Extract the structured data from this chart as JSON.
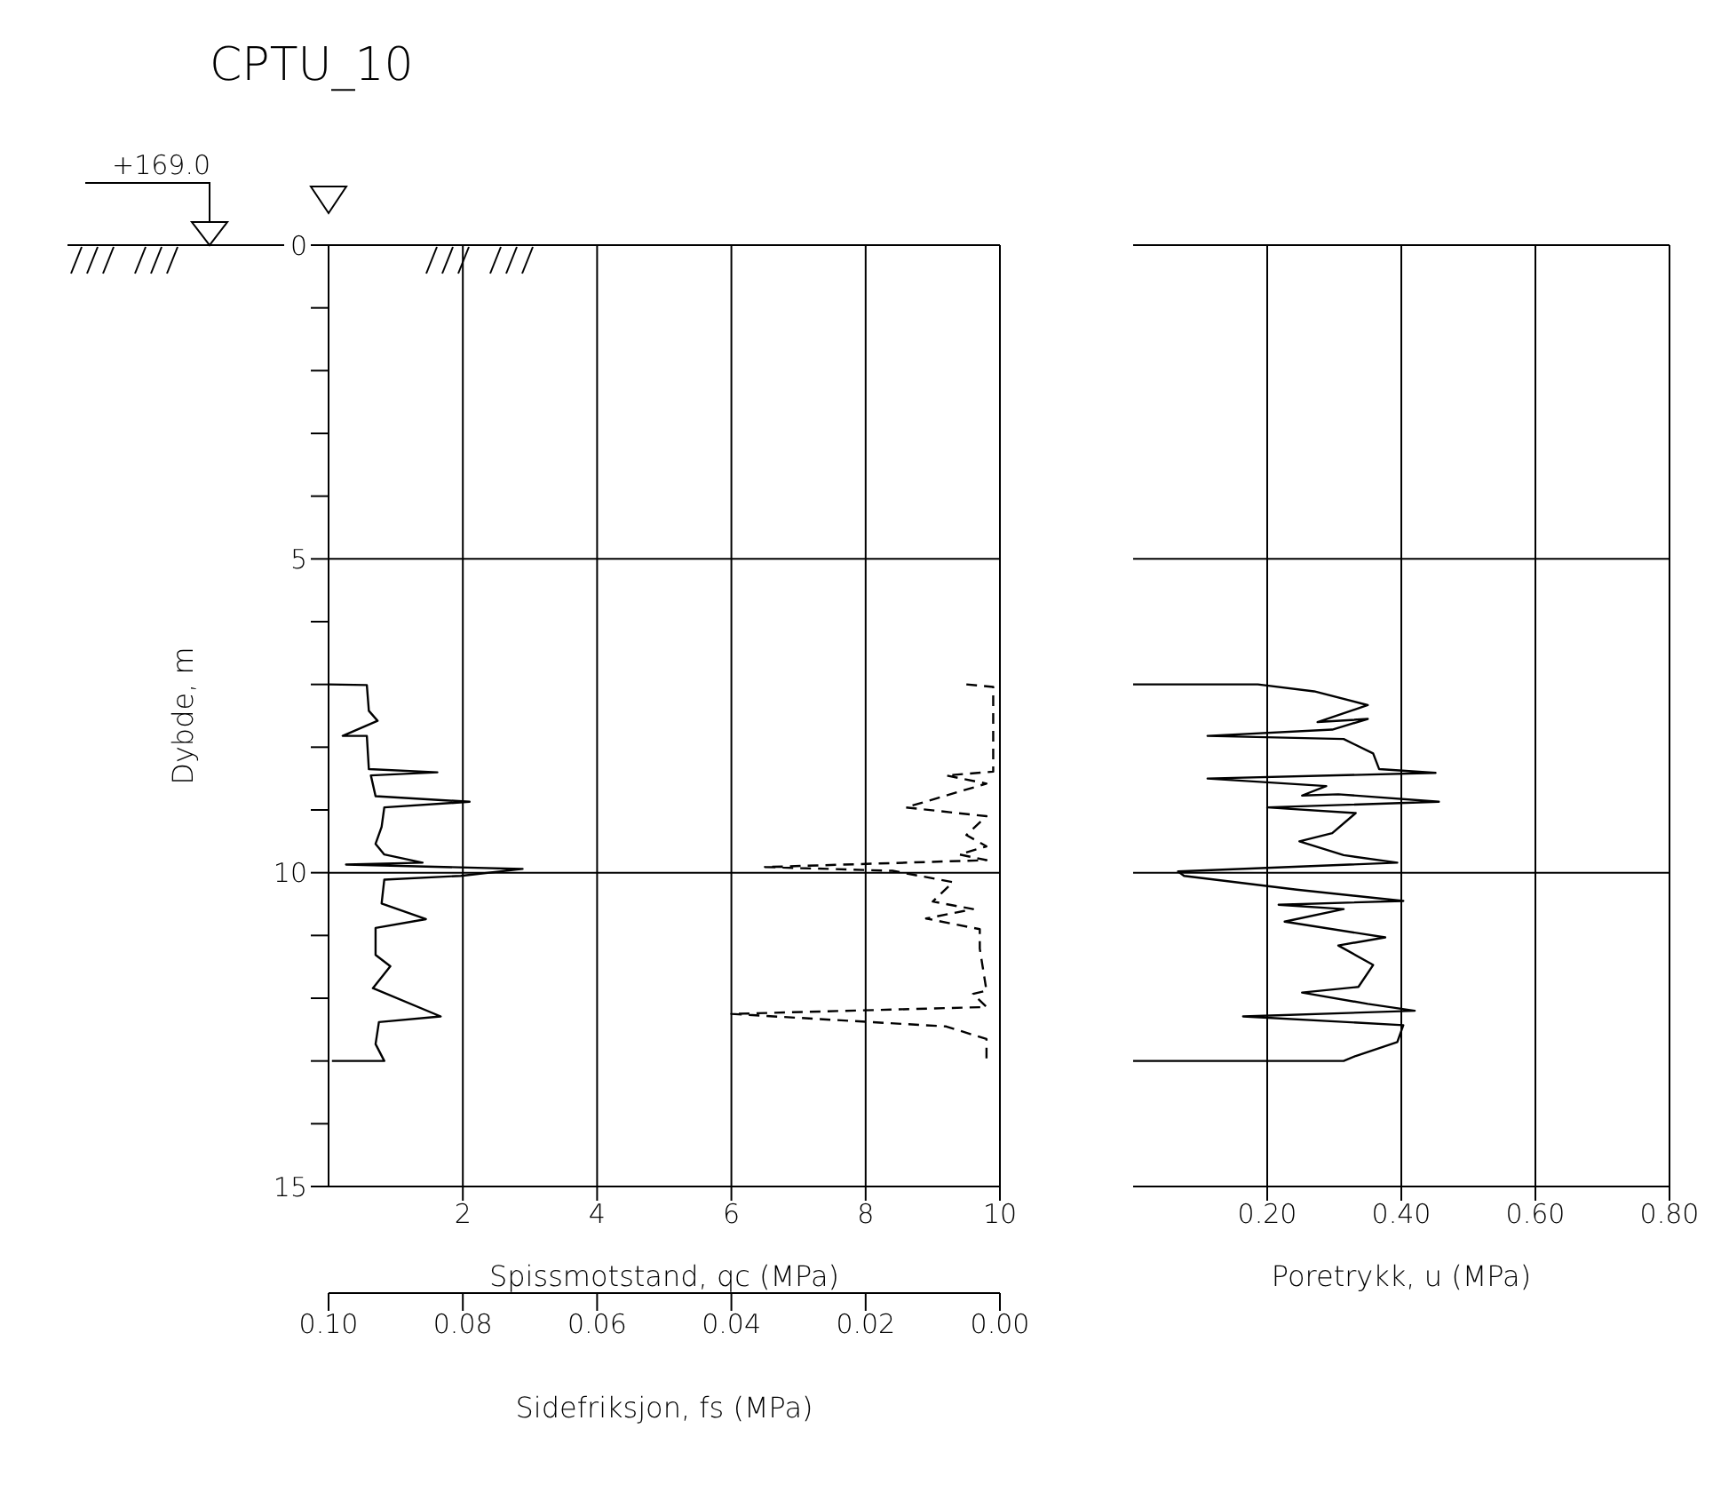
{
  "chart_data": [
    {
      "type": "line",
      "title": "CPTU_10",
      "xlabel": "Spissmotstand, qc (MPa)",
      "x2label": "Sidefriksjon, fs (MPa)",
      "ylabel": "Dybde, m",
      "annotations": [
        "+169.0"
      ],
      "xlim": [
        0,
        10
      ],
      "xticks": [
        2,
        4,
        6,
        8,
        10
      ],
      "x2lim": [
        0.1,
        0.0
      ],
      "x2ticks": [
        {
          "value": 0.1,
          "label": "0.10"
        },
        {
          "value": 0.08,
          "label": "0.08"
        },
        {
          "value": 0.06,
          "label": "0.06"
        },
        {
          "value": 0.04,
          "label": "0.04"
        },
        {
          "value": 0.02,
          "label": "0.02"
        },
        {
          "value": 0.0,
          "label": "0.00"
        }
      ],
      "ylim": [
        15,
        0
      ],
      "yticks": [
        0,
        {
          "value": 1,
          "label": null
        },
        {
          "value": 2,
          "label": null
        },
        {
          "value": 3,
          "label": null
        },
        {
          "value": 4,
          "label": null
        },
        5,
        {
          "value": 6,
          "label": null
        },
        {
          "value": 7,
          "label": null
        },
        {
          "value": 8,
          "label": null
        },
        {
          "value": 9,
          "label": null
        },
        10,
        {
          "value": 11,
          "label": null
        },
        {
          "value": 12,
          "label": null
        },
        {
          "value": 13,
          "label": null
        },
        {
          "value": 14,
          "label": null
        },
        15
      ],
      "grid": true,
      "marker": "none",
      "series": [
        {
          "color": "#000000",
          "line_style": "solid",
          "x": [
            0.0,
            0.57,
            0.6,
            0.73,
            0.21,
            0.57,
            0.6,
            1.62,
            0.63,
            0.7,
            2.1,
            0.83,
            0.79,
            0.7,
            0.83,
            1.4,
            0.26,
            2.89,
            1.97,
            0.83,
            0.79,
            1.45,
            0.7,
            0.7,
            0.92,
            0.66,
            1.67,
            0.75,
            0.7,
            0.83,
            0.05
          ],
          "values": [
            7.0,
            7.01,
            7.42,
            7.58,
            7.82,
            7.82,
            8.35,
            8.4,
            8.45,
            8.78,
            8.87,
            8.96,
            9.27,
            9.54,
            9.71,
            9.84,
            9.87,
            9.94,
            10.05,
            10.11,
            10.49,
            10.74,
            10.88,
            11.31,
            11.49,
            11.84,
            12.29,
            12.38,
            12.73,
            13.0,
            13.0
          ]
        },
        {
          "color": "#000000",
          "line_style": "dashed",
          "axis": "x2",
          "x": [
            0.005,
            0.001,
            0.001,
            0.008,
            0.002,
            0.014,
            0.002,
            0.005,
            0.002,
            0.006,
            0.002,
            0.035,
            0.016,
            0.007,
            0.01,
            0.004,
            0.011,
            0.003,
            0.003,
            0.002,
            0.004,
            0.002,
            0.04,
            0.008,
            0.002,
            0.002
          ],
          "values": [
            7.0,
            7.04,
            8.39,
            8.45,
            8.58,
            8.96,
            9.1,
            9.4,
            9.58,
            9.71,
            9.8,
            9.91,
            9.97,
            10.15,
            10.46,
            10.58,
            10.73,
            10.9,
            11.21,
            11.88,
            11.93,
            12.14,
            12.25,
            12.45,
            12.65,
            13.0
          ]
        }
      ]
    },
    {
      "type": "line",
      "xlabel": "Poretrykk, u (MPa)",
      "tick_labels": "x",
      "xlim": [
        0,
        0.8
      ],
      "xticks": [
        {
          "value": 0.2,
          "label": "0.20"
        },
        {
          "value": 0.4,
          "label": "0.40"
        },
        {
          "value": 0.6,
          "label": "0.60"
        },
        {
          "value": 0.8,
          "label": "0.80"
        }
      ],
      "ylim": [
        15,
        0
      ],
      "yticks": [
        0,
        5,
        10,
        15
      ],
      "grid": true,
      "marker": "none",
      "series": [
        {
          "color": "#000000",
          "line_style": "solid",
          "x": [
            0.0,
            0.186,
            0.27,
            0.35,
            0.275,
            0.35,
            0.297,
            0.111,
            0.314,
            0.358,
            0.367,
            0.451,
            0.111,
            0.288,
            0.252,
            0.306,
            0.456,
            0.2,
            0.332,
            0.297,
            0.248,
            0.314,
            0.394,
            0.067,
            0.076,
            0.244,
            0.403,
            0.217,
            0.314,
            0.226,
            0.376,
            0.306,
            0.358,
            0.336,
            0.252,
            0.35,
            0.42,
            0.164,
            0.403,
            0.394,
            0.332,
            0.314,
            0.0
          ],
          "values": [
            7.0,
            7.0,
            7.11,
            7.33,
            7.6,
            7.55,
            7.72,
            7.82,
            7.87,
            8.1,
            8.35,
            8.41,
            8.5,
            8.62,
            8.77,
            8.75,
            8.87,
            8.96,
            9.05,
            9.37,
            9.5,
            9.72,
            9.84,
            9.98,
            10.05,
            10.27,
            10.45,
            10.51,
            10.58,
            10.78,
            11.03,
            11.16,
            11.47,
            11.82,
            11.91,
            12.09,
            12.2,
            12.29,
            12.43,
            12.7,
            12.92,
            13.0,
            13.0
          ]
        }
      ]
    }
  ]
}
